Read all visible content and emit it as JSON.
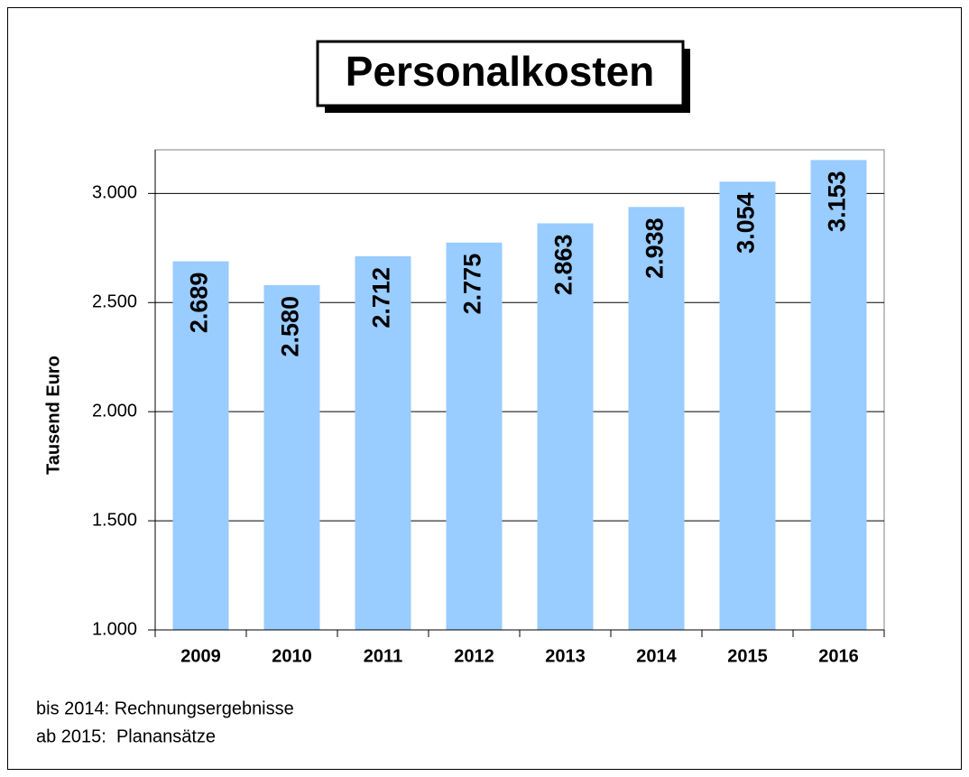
{
  "chart_data": {
    "type": "bar",
    "title": "Personalkosten",
    "y_label": "Tausend Euro",
    "categories": [
      "2009",
      "2010",
      "2011",
      "2012",
      "2013",
      "2014",
      "2015",
      "2016"
    ],
    "values": [
      2689,
      2580,
      2712,
      2775,
      2863,
      2938,
      3054,
      3153
    ],
    "value_labels": [
      "2.689",
      "2.580",
      "2.712",
      "2.775",
      "2.863",
      "2.938",
      "3.054",
      "3.153"
    ],
    "color": "#99ccff",
    "ylim": [
      1000,
      3200
    ],
    "yticks": [
      {
        "value": 1000,
        "label": "1.000"
      },
      {
        "value": 1500,
        "label": "1.500"
      },
      {
        "value": 2000,
        "label": "2.000"
      },
      {
        "value": 2500,
        "label": "2.500"
      },
      {
        "value": 3000,
        "label": "3.000"
      }
    ],
    "grid": true,
    "annotations": [
      "bis 2014: Rechnungsergebnisse",
      "ab 2015:  Planansätze"
    ]
  }
}
